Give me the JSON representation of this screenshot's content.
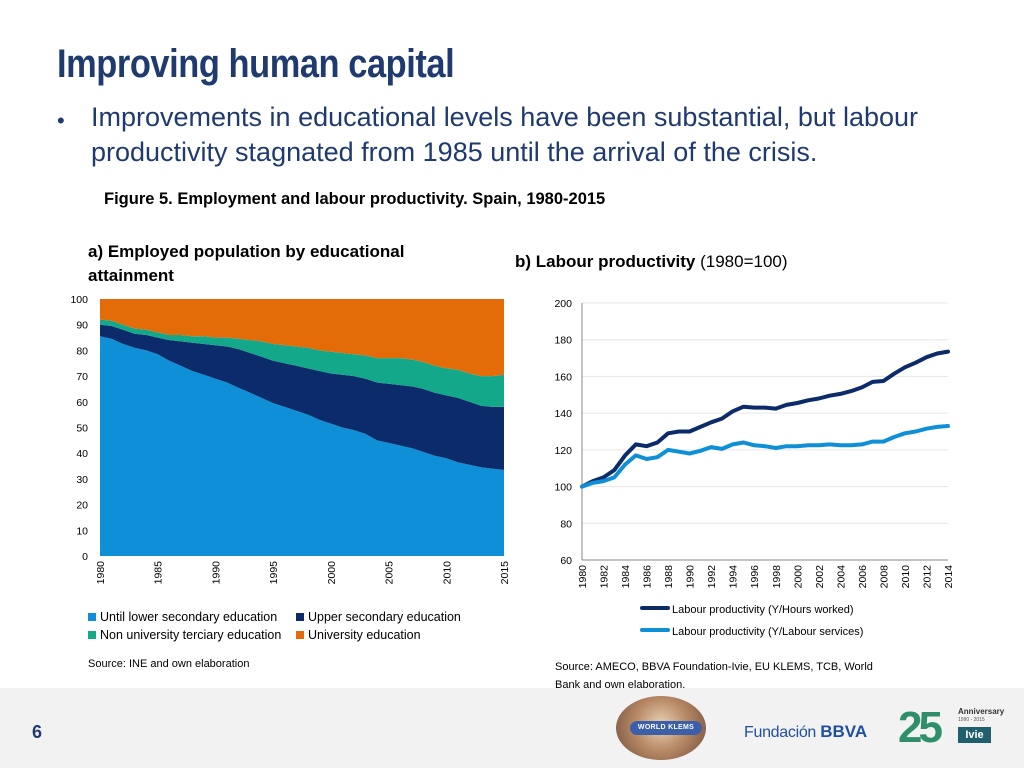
{
  "header": {
    "title": "Improving human capital",
    "bullet_symbol": "•",
    "bullet": "Improvements in educational levels have been substantial, but labour productivity stagnated from 1985 until the arrival of the crisis."
  },
  "figure_title": "Figure 5. Employment and labour productivity. Spain, 1980-2015",
  "panel_a": {
    "title": "a) Employed population by educational attainment",
    "source": "Source: INE and own elaboration"
  },
  "panel_b": {
    "title_bold": "b) Labour productivity",
    "title_rest": " (1980=100)",
    "source": "Source: AMECO, BBVA Foundation-Ivie, EU KLEMS, TCB, World Bank and own elaboration."
  },
  "footer": {
    "page_number": "6",
    "logo_world_klems": "WORLD KLEMS",
    "logo_fbbva_light": "Fundación",
    "logo_fbbva_bold": "BBVA",
    "logo_anniv_digits": "25",
    "logo_anniv_title": "Anniversary",
    "logo_anniv_years": "1990 - 2015",
    "logo_ivie": "Ivie"
  },
  "chart_data": [
    {
      "type": "area",
      "stacked": true,
      "x": [
        1980,
        1981,
        1982,
        1983,
        1984,
        1985,
        1986,
        1987,
        1988,
        1989,
        1990,
        1991,
        1992,
        1993,
        1994,
        1995,
        1996,
        1997,
        1998,
        1999,
        2000,
        2001,
        2002,
        2003,
        2004,
        2005,
        2006,
        2007,
        2008,
        2009,
        2010,
        2011,
        2012,
        2013,
        2014,
        2015
      ],
      "xticks": [
        "1980",
        "1985",
        "1990",
        "1995",
        "2000",
        "2005",
        "2010",
        "2015"
      ],
      "yticks": [
        "0",
        "10",
        "20",
        "30",
        "40",
        "50",
        "60",
        "70",
        "80",
        "90",
        "100"
      ],
      "ylim": [
        0,
        100
      ],
      "series": [
        {
          "name": "Until lower secondary education",
          "color": "#0e8fd6",
          "values": [
            85.5,
            84.5,
            82.5,
            81,
            80,
            78.5,
            76,
            74,
            72,
            70.5,
            69,
            67.5,
            65.5,
            63.5,
            61.5,
            59.5,
            58,
            56.5,
            55,
            53,
            51.5,
            50,
            49,
            47.5,
            45,
            44,
            43,
            42,
            40.5,
            39,
            38,
            36.5,
            35.5,
            34.5,
            34,
            33.5
          ]
        },
        {
          "name": "Upper secondary education",
          "color": "#0b2b6b",
          "values": [
            4.5,
            5,
            5.5,
            5.5,
            6,
            6.5,
            8,
            9.5,
            11,
            12,
            13,
            14,
            15,
            15.5,
            16,
            16.5,
            17,
            17.5,
            18,
            19,
            19.5,
            20.5,
            21,
            21.5,
            22.5,
            23,
            23.5,
            24,
            24.5,
            24.5,
            24.5,
            25,
            24.5,
            24,
            24,
            24.5
          ]
        },
        {
          "name": "Non university terciary education",
          "color": "#13a88a",
          "values": [
            2,
            2,
            2,
            2,
            2,
            2,
            2,
            2.5,
            2.5,
            3,
            3,
            3.5,
            4,
            5,
            6,
            6.5,
            7,
            7.5,
            8,
            8,
            8.5,
            8.5,
            8.5,
            9,
            9.5,
            10,
            10.5,
            10.5,
            10.5,
            10.5,
            10.5,
            11,
            11,
            11.5,
            12,
            12.5
          ]
        },
        {
          "name": "University education",
          "color": "#e36c09",
          "values": [
            8,
            8.5,
            10,
            11.5,
            12,
            13,
            14,
            14,
            14.5,
            14.5,
            15,
            15,
            15.5,
            16,
            16.5,
            17.5,
            18,
            18.5,
            19,
            20,
            20.5,
            21,
            21.5,
            22,
            23,
            23,
            23,
            23.5,
            24.5,
            26,
            27,
            27.5,
            29,
            30,
            30,
            29.5
          ]
        }
      ]
    },
    {
      "type": "line",
      "x": [
        1980,
        1981,
        1982,
        1983,
        1984,
        1985,
        1986,
        1987,
        1988,
        1989,
        1990,
        1991,
        1992,
        1993,
        1994,
        1995,
        1996,
        1997,
        1998,
        1999,
        2000,
        2001,
        2002,
        2003,
        2004,
        2005,
        2006,
        2007,
        2008,
        2009,
        2010,
        2011,
        2012,
        2013,
        2014
      ],
      "xticks": [
        "1980",
        "1982",
        "1984",
        "1986",
        "1988",
        "1990",
        "1992",
        "1994",
        "1996",
        "1998",
        "2000",
        "2002",
        "2004",
        "2006",
        "2008",
        "2010",
        "2012",
        "2014"
      ],
      "yticks": [
        "60",
        "80",
        "100",
        "120",
        "140",
        "160",
        "180",
        "200"
      ],
      "ylim": [
        60,
        200
      ],
      "series": [
        {
          "name": "Labour productivity (Y/Hours worked)",
          "color": "#0b2b6b",
          "values": [
            100,
            103,
            105,
            109,
            117,
            123,
            122,
            124,
            129,
            130,
            130,
            132.5,
            135,
            137,
            141,
            143.5,
            143,
            143,
            142.5,
            144.5,
            145.5,
            147,
            148,
            149.5,
            150.5,
            152,
            154,
            157,
            157.5,
            161.5,
            165,
            167.5,
            170.5,
            172.5,
            173.5
          ]
        },
        {
          "name": "Labour productivity (Y/Labour services)",
          "color": "#0e8fd6",
          "values": [
            100,
            102,
            103,
            105,
            112,
            117,
            115,
            116,
            120,
            119,
            118,
            119.5,
            121.5,
            120.5,
            123,
            124,
            122.5,
            122,
            121,
            122,
            122,
            122.5,
            122.5,
            123,
            122.5,
            122.5,
            123,
            124.5,
            124.5,
            127,
            129,
            130,
            131.5,
            132.5,
            133
          ]
        }
      ]
    }
  ]
}
